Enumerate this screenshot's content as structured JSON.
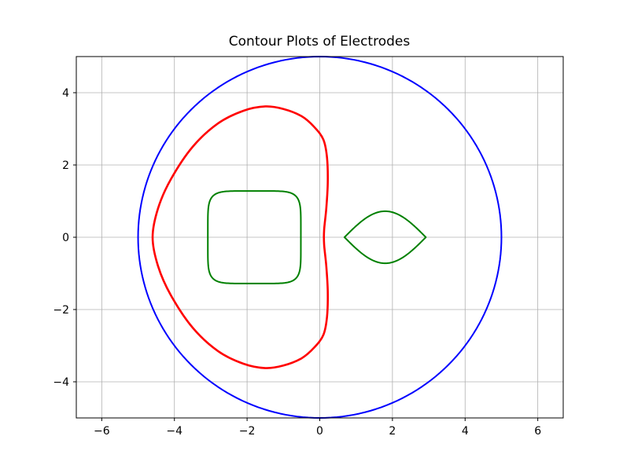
{
  "chart_data": {
    "type": "line",
    "title": "Contour Plots of Electrodes",
    "xlabel": "",
    "ylabel": "",
    "xlim": [
      -6.7,
      6.7
    ],
    "ylim": [
      -5,
      5
    ],
    "grid": true,
    "aspect": "equal",
    "x_ticks": [
      -6,
      -4,
      -2,
      0,
      2,
      4,
      6
    ],
    "x_tick_labels": [
      "−6",
      "−4",
      "−2",
      "0",
      "2",
      "4",
      "6"
    ],
    "y_ticks": [
      -4,
      -2,
      0,
      2,
      4
    ],
    "y_tick_labels": [
      "−4",
      "−2",
      "0",
      "2",
      "4"
    ],
    "series": [
      {
        "color": "#0000ff",
        "shape": "circle",
        "center": [
          0,
          0
        ],
        "radius": 5
      },
      {
        "color": "#ff0000",
        "shape": "closed-curve",
        "points": [
          [
            -1.5,
            3.62
          ],
          [
            -1.0,
            3.55
          ],
          [
            -0.5,
            3.35
          ],
          [
            -0.15,
            3.05
          ],
          [
            0.1,
            2.7
          ],
          [
            0.2,
            2.2
          ],
          [
            0.22,
            1.5
          ],
          [
            0.18,
            0.8
          ],
          [
            0.12,
            0.2
          ],
          [
            0.12,
            -0.2
          ],
          [
            0.18,
            -0.8
          ],
          [
            0.22,
            -1.5
          ],
          [
            0.2,
            -2.2
          ],
          [
            0.1,
            -2.7
          ],
          [
            -0.15,
            -3.05
          ],
          [
            -0.5,
            -3.35
          ],
          [
            -1.0,
            -3.55
          ],
          [
            -1.5,
            -3.62
          ],
          [
            -2.1,
            -3.5
          ],
          [
            -2.8,
            -3.15
          ],
          [
            -3.5,
            -2.5
          ],
          [
            -4.1,
            -1.6
          ],
          [
            -4.45,
            -0.8
          ],
          [
            -4.6,
            0
          ],
          [
            -4.45,
            0.8
          ],
          [
            -4.1,
            1.6
          ],
          [
            -3.5,
            2.5
          ],
          [
            -2.8,
            3.15
          ],
          [
            -2.1,
            3.5
          ]
        ]
      },
      {
        "color": "#008000",
        "shape": "rounded-square",
        "center": [
          -1.8,
          0
        ],
        "half_width": 1.28,
        "half_height": 1.28,
        "exponent": 6
      },
      {
        "color": "#008000",
        "shape": "lens",
        "x_range": [
          0.68,
          2.92
        ],
        "peak_x": 1.8,
        "peak_y": 0.72
      }
    ]
  }
}
